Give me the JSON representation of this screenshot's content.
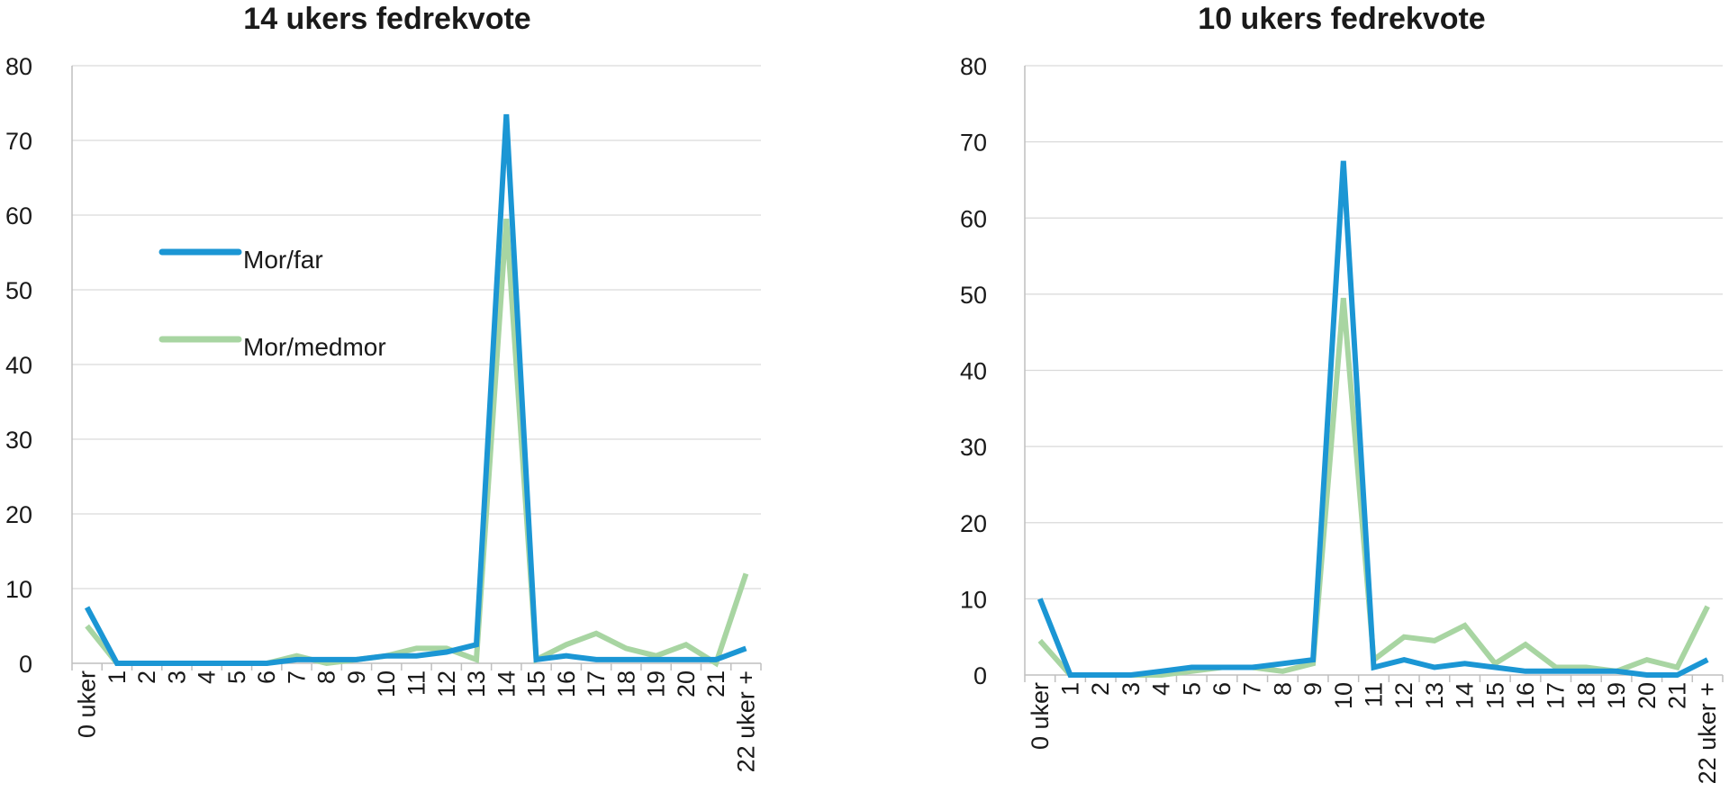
{
  "chart_data": [
    {
      "type": "line",
      "title": "14 ukers fedrekvote",
      "categories": [
        "0 uker",
        "1",
        "2",
        "3",
        "4",
        "5",
        "6",
        "7",
        "8",
        "9",
        "10",
        "11",
        "12",
        "13",
        "14",
        "15",
        "16",
        "17",
        "18",
        "19",
        "20",
        "21",
        "22 uker +"
      ],
      "ylim": [
        0,
        80
      ],
      "yticks": [
        0,
        10,
        20,
        30,
        40,
        50,
        60,
        70,
        80
      ],
      "grid": true,
      "legend": "left-center",
      "series": [
        {
          "name": "Mor/far",
          "color": "#1b96d4",
          "values": [
            7.5,
            0,
            0,
            0,
            0,
            0,
            0,
            0.5,
            0.5,
            0.5,
            1,
            1,
            1.5,
            2.5,
            73.5,
            0.5,
            1,
            0.5,
            0.5,
            0.5,
            0.5,
            0.5,
            2
          ]
        },
        {
          "name": "Mor/medmor",
          "color": "#a8d5a2",
          "values": [
            5,
            0,
            0,
            0,
            0,
            0,
            0,
            1,
            0,
            0.5,
            1,
            2,
            2,
            0.5,
            59.5,
            0.5,
            2.5,
            4,
            2,
            1,
            2.5,
            0,
            12
          ]
        }
      ]
    },
    {
      "type": "line",
      "title": "10 ukers fedrekvote",
      "categories": [
        "0 uker",
        "1",
        "2",
        "3",
        "4",
        "5",
        "6",
        "7",
        "8",
        "9",
        "10",
        "11",
        "12",
        "13",
        "14",
        "15",
        "16",
        "17",
        "18",
        "19",
        "20",
        "21",
        "22 uker +"
      ],
      "ylim": [
        0,
        80
      ],
      "yticks": [
        0,
        10,
        20,
        30,
        40,
        50,
        60,
        70,
        80
      ],
      "grid": true,
      "legend": "none",
      "series": [
        {
          "name": "Mor/far",
          "color": "#1b96d4",
          "values": [
            10,
            0,
            0,
            0,
            0.5,
            1,
            1,
            1,
            1.5,
            2,
            67.5,
            1,
            2,
            1,
            1.5,
            1,
            0.5,
            0.5,
            0.5,
            0.5,
            0,
            0,
            2
          ]
        },
        {
          "name": "Mor/medmor",
          "color": "#a8d5a2",
          "values": [
            4.5,
            0,
            0,
            0,
            0,
            0.5,
            1,
            1,
            0.5,
            1.5,
            49.5,
            2,
            5,
            4.5,
            6.5,
            1.5,
            4,
            1,
            1,
            0.5,
            2,
            1,
            9
          ]
        }
      ]
    }
  ]
}
